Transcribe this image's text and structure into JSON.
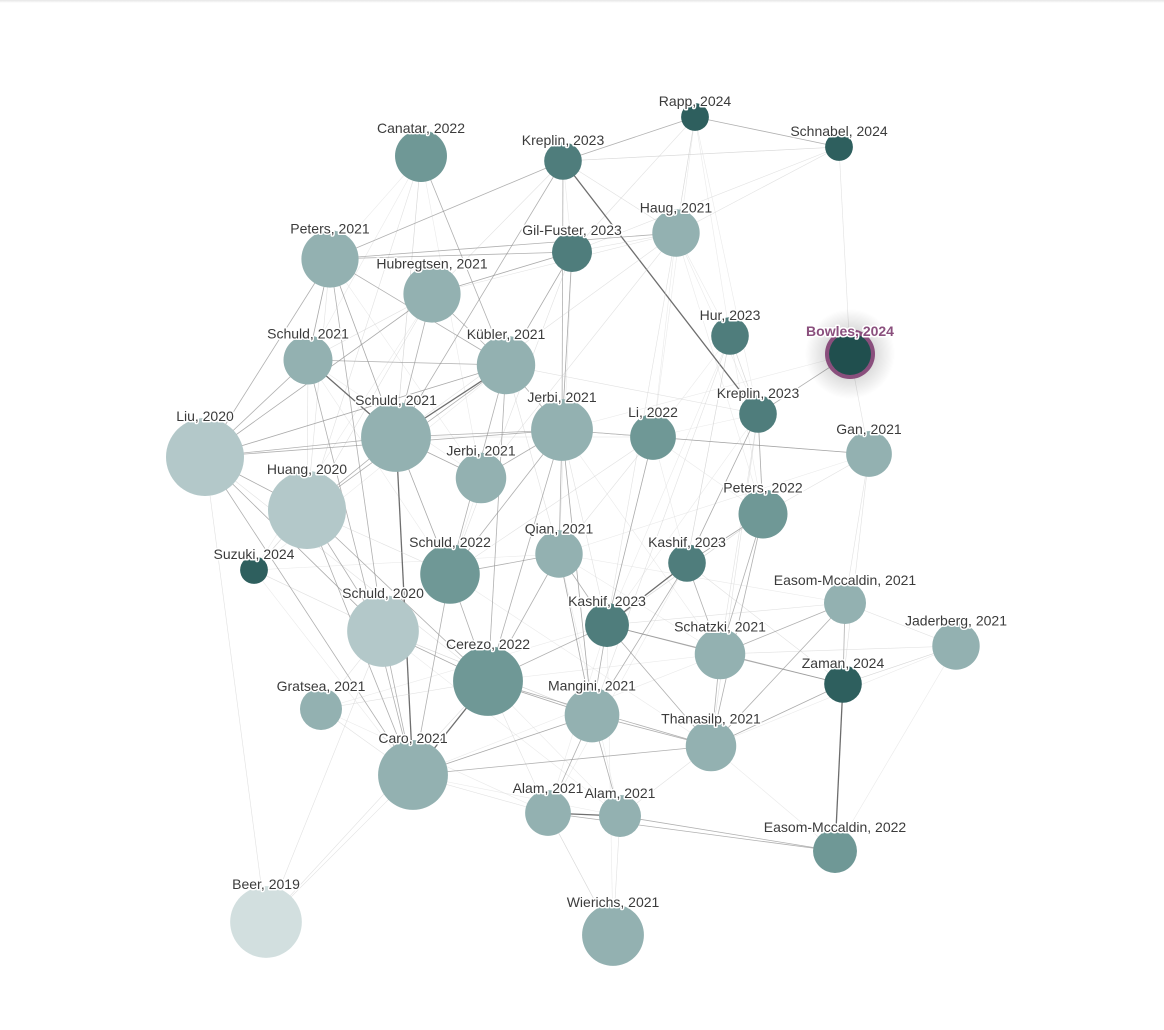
{
  "graph": {
    "selected": "Bowles, 2024",
    "colors": {
      "selected_ring": "#8a4f7d",
      "label": "#3b3b3b",
      "edge": "#777777"
    },
    "nodes": [
      {
        "id": "rapp2024",
        "label": "Rapp, 2024",
        "year": 2024,
        "citations": 1
      },
      {
        "id": "schnabel2024",
        "label": "Schnabel, 2024",
        "year": 2024,
        "citations": 1
      },
      {
        "id": "canatar2022",
        "label": "Canatar, 2022",
        "year": 2022,
        "citations": 12
      },
      {
        "id": "kreplin2023a",
        "label": "Kreplin, 2023",
        "year": 2023,
        "citations": 4
      },
      {
        "id": "haug2021",
        "label": "Haug, 2021",
        "year": 2021,
        "citations": 9
      },
      {
        "id": "gilfuster2023",
        "label": "Gil-Fuster, 2023",
        "year": 2023,
        "citations": 5
      },
      {
        "id": "peters2021",
        "label": "Peters, 2021",
        "year": 2021,
        "citations": 16
      },
      {
        "id": "hubregtsen2021",
        "label": "Hubregtsen, 2021",
        "year": 2021,
        "citations": 16
      },
      {
        "id": "hur2023",
        "label": "Hur, 2023",
        "year": 2023,
        "citations": 4
      },
      {
        "id": "bowles2024",
        "label": "Bowles, 2024",
        "year": 2024,
        "citations": 6
      },
      {
        "id": "schuld2021a",
        "label": "Schuld, 2021",
        "year": 2021,
        "citations": 10
      },
      {
        "id": "kubler2021",
        "label": "Kübler, 2021",
        "year": 2021,
        "citations": 17
      },
      {
        "id": "kreplin2023b",
        "label": "Kreplin, 2023",
        "year": 2023,
        "citations": 4
      },
      {
        "id": "liu2020",
        "label": "Liu, 2020",
        "year": 2020,
        "citations": 38
      },
      {
        "id": "schuld2021b",
        "label": "Schuld, 2021",
        "year": 2021,
        "citations": 28
      },
      {
        "id": "jerbi2021a",
        "label": "Jerbi, 2021",
        "year": 2021,
        "citations": 20
      },
      {
        "id": "li2022",
        "label": "Li, 2022",
        "year": 2022,
        "citations": 8
      },
      {
        "id": "gan2021",
        "label": "Gan, 2021",
        "year": 2021,
        "citations": 8
      },
      {
        "id": "jerbi2021b",
        "label": "Jerbi, 2021",
        "year": 2021,
        "citations": 11
      },
      {
        "id": "huang2020",
        "label": "Huang, 2020",
        "year": 2020,
        "citations": 40
      },
      {
        "id": "peters2022",
        "label": "Peters, 2022",
        "year": 2022,
        "citations": 10
      },
      {
        "id": "suzuki2024",
        "label": "Suzuki, 2024",
        "year": 2024,
        "citations": 1
      },
      {
        "id": "schuld2022",
        "label": "Schuld, 2022",
        "year": 2022,
        "citations": 18
      },
      {
        "id": "qian2021",
        "label": "Qian, 2021",
        "year": 2021,
        "citations": 9
      },
      {
        "id": "kashif2023a",
        "label": "Kashif, 2023",
        "year": 2023,
        "citations": 4
      },
      {
        "id": "easom2021",
        "label": "Easom-Mccaldin, 2021",
        "year": 2021,
        "citations": 6
      },
      {
        "id": "jaderberg2021",
        "label": "Jaderberg, 2021",
        "year": 2021,
        "citations": 9
      },
      {
        "id": "schuld2020",
        "label": "Schuld, 2020",
        "year": 2020,
        "citations": 30
      },
      {
        "id": "kashif2023b",
        "label": "Kashif, 2023",
        "year": 2023,
        "citations": 7
      },
      {
        "id": "schatzki2021",
        "label": "Schatzki, 2021",
        "year": 2021,
        "citations": 11
      },
      {
        "id": "zaman2024",
        "label": "Zaman, 2024",
        "year": 2024,
        "citations": 4
      },
      {
        "id": "cerezo2022",
        "label": "Cerezo, 2022",
        "year": 2022,
        "citations": 28
      },
      {
        "id": "gratsea2021",
        "label": "Gratsea, 2021",
        "year": 2021,
        "citations": 6
      },
      {
        "id": "mangini2021",
        "label": "Mangini, 2021",
        "year": 2021,
        "citations": 14
      },
      {
        "id": "thanasilp2021",
        "label": "Thanasilp, 2021",
        "year": 2021,
        "citations": 11
      },
      {
        "id": "caro2021",
        "label": "Caro, 2021",
        "year": 2021,
        "citations": 28
      },
      {
        "id": "alam2021a",
        "label": "Alam, 2021",
        "year": 2021,
        "citations": 8
      },
      {
        "id": "alam2021b",
        "label": "Alam, 2021",
        "year": 2021,
        "citations": 6
      },
      {
        "id": "easom2022",
        "label": "Easom-Mccaldin, 2022",
        "year": 2022,
        "citations": 7
      },
      {
        "id": "beer2019",
        "label": "Beer, 2019",
        "year": 2019,
        "citations": 30
      },
      {
        "id": "wierichs2021",
        "label": "Wierichs, 2021",
        "year": 2021,
        "citations": 20
      }
    ],
    "edges": [
      [
        "rapp2024",
        "schnabel2024",
        1
      ],
      [
        "rapp2024",
        "kreplin2023a",
        1
      ],
      [
        "rapp2024",
        "haug2021",
        0
      ],
      [
        "rapp2024",
        "gilfuster2023",
        0
      ],
      [
        "schnabel2024",
        "kreplin2023a",
        0
      ],
      [
        "schnabel2024",
        "haug2021",
        0
      ],
      [
        "schnabel2024",
        "gilfuster2023",
        0
      ],
      [
        "schnabel2024",
        "bowles2024",
        0
      ],
      [
        "canatar2022",
        "kubler2021",
        1
      ],
      [
        "canatar2022",
        "schuld2021b",
        0
      ],
      [
        "canatar2022",
        "huang2020",
        0
      ],
      [
        "kreplin2023a",
        "kreplin2023b",
        2
      ],
      [
        "kreplin2023a",
        "schuld2021b",
        1
      ],
      [
        "kreplin2023a",
        "jerbi2021a",
        1
      ],
      [
        "kreplin2023a",
        "peters2021",
        1
      ],
      [
        "kreplin2023a",
        "hubregtsen2021",
        0
      ],
      [
        "kreplin2023a",
        "haug2021",
        0
      ],
      [
        "gilfuster2023",
        "peters2021",
        1
      ],
      [
        "gilfuster2023",
        "hubregtsen2021",
        1
      ],
      [
        "gilfuster2023",
        "jerbi2021a",
        1
      ],
      [
        "gilfuster2023",
        "kubler2021",
        1
      ],
      [
        "gilfuster2023",
        "schuld2022",
        0
      ],
      [
        "gilfuster2023",
        "haug2021",
        0
      ],
      [
        "haug2021",
        "peters2021",
        1
      ],
      [
        "haug2021",
        "hubregtsen2021",
        0
      ],
      [
        "haug2021",
        "schuld2021b",
        0
      ],
      [
        "haug2021",
        "kashif2023b",
        0
      ],
      [
        "haug2021",
        "jerbi2021b",
        0
      ],
      [
        "peters2021",
        "schuld2021a",
        1
      ],
      [
        "peters2021",
        "kubler2021",
        1
      ],
      [
        "peters2021",
        "schuld2021b",
        1
      ],
      [
        "peters2021",
        "liu2020",
        1
      ],
      [
        "peters2021",
        "huang2020",
        0
      ],
      [
        "peters2021",
        "schuld2020",
        1
      ],
      [
        "hubregtsen2021",
        "kubler2021",
        1
      ],
      [
        "hubregtsen2021",
        "schuld2021b",
        1
      ],
      [
        "hubregtsen2021",
        "liu2020",
        1
      ],
      [
        "hubregtsen2021",
        "huang2020",
        0
      ],
      [
        "hubregtsen2021",
        "schuld2021a",
        0
      ],
      [
        "schuld2021a",
        "liu2020",
        1
      ],
      [
        "schuld2021a",
        "schuld2021b",
        2
      ],
      [
        "schuld2021a",
        "kubler2021",
        1
      ],
      [
        "schuld2021a",
        "huang2020",
        0
      ],
      [
        "schuld2021a",
        "caro2021",
        1
      ],
      [
        "kubler2021",
        "schuld2021b",
        2
      ],
      [
        "kubler2021",
        "liu2020",
        1
      ],
      [
        "kubler2021",
        "jerbi2021a",
        1
      ],
      [
        "kubler2021",
        "huang2020",
        1
      ],
      [
        "kubler2021",
        "schuld2022",
        1
      ],
      [
        "kubler2021",
        "qian2021",
        0
      ],
      [
        "kubler2021",
        "cerezo2022",
        1
      ],
      [
        "kubler2021",
        "kreplin2023b",
        0
      ],
      [
        "hur2023",
        "kreplin2023b",
        0
      ],
      [
        "hur2023",
        "kashif2023a",
        0
      ],
      [
        "hur2023",
        "mangini2021",
        0
      ],
      [
        "bowles2024",
        "kreplin2023b",
        1
      ],
      [
        "bowles2024",
        "gan2021",
        0
      ],
      [
        "liu2020",
        "schuld2021b",
        1
      ],
      [
        "liu2020",
        "jerbi2021a",
        1
      ],
      [
        "liu2020",
        "huang2020",
        1
      ],
      [
        "liu2020",
        "schuld2020",
        1
      ],
      [
        "liu2020",
        "caro2021",
        1
      ],
      [
        "liu2020",
        "cerezo2022",
        0
      ],
      [
        "schuld2021b",
        "jerbi2021a",
        1
      ],
      [
        "schuld2021b",
        "huang2020",
        1
      ],
      [
        "schuld2021b",
        "caro2021",
        2
      ],
      [
        "schuld2021b",
        "schuld2022",
        1
      ],
      [
        "schuld2021b",
        "jerbi2021b",
        1
      ],
      [
        "schuld2021b",
        "li2022",
        0
      ],
      [
        "jerbi2021a",
        "li2022",
        1
      ],
      [
        "jerbi2021a",
        "gan2021",
        0
      ],
      [
        "jerbi2021a",
        "jerbi2021b",
        1
      ],
      [
        "jerbi2021a",
        "schuld2022",
        1
      ],
      [
        "jerbi2021a",
        "qian2021",
        1
      ],
      [
        "jerbi2021a",
        "cerezo2022",
        1
      ],
      [
        "jerbi2021a",
        "mangini2021",
        1
      ],
      [
        "jerbi2021a",
        "kashif2023b",
        0
      ],
      [
        "li2022",
        "gan2021",
        1
      ],
      [
        "li2022",
        "kashif2023b",
        1
      ],
      [
        "li2022",
        "qian2021",
        0
      ],
      [
        "li2022",
        "schuld2022",
        0
      ],
      [
        "kreplin2023b",
        "peters2022",
        1
      ],
      [
        "kreplin2023b",
        "kashif2023a",
        1
      ],
      [
        "kreplin2023b",
        "schatzki2021",
        0
      ],
      [
        "kreplin2023b",
        "thanasilp2021",
        0
      ],
      [
        "gan2021",
        "peters2022",
        0
      ],
      [
        "gan2021",
        "easom2021",
        0
      ],
      [
        "gan2021",
        "zaman2024",
        0
      ],
      [
        "huang2020",
        "schuld2020",
        1
      ],
      [
        "huang2020",
        "caro2021",
        1
      ],
      [
        "huang2020",
        "cerezo2022",
        1
      ],
      [
        "huang2020",
        "suzuki2024",
        0
      ],
      [
        "huang2020",
        "schuld2022",
        0
      ],
      [
        "peters2022",
        "kashif2023a",
        1
      ],
      [
        "peters2022",
        "schatzki2021",
        1
      ],
      [
        "peters2022",
        "thanasilp2021",
        1
      ],
      [
        "peters2022",
        "kashif2023b",
        0
      ],
      [
        "schuld2022",
        "cerezo2022",
        1
      ],
      [
        "schuld2022",
        "qian2021",
        1
      ],
      [
        "schuld2022",
        "caro2021",
        1
      ],
      [
        "qian2021",
        "kashif2023b",
        1
      ],
      [
        "qian2021",
        "mangini2021",
        1
      ],
      [
        "qian2021",
        "cerezo2022",
        1
      ],
      [
        "kashif2023a",
        "kashif2023b",
        2
      ],
      [
        "kashif2023a",
        "schatzki2021",
        1
      ],
      [
        "kashif2023a",
        "zaman2024",
        0
      ],
      [
        "kashif2023a",
        "mangini2021",
        1
      ],
      [
        "kashif2023b",
        "schatzki2021",
        1
      ],
      [
        "kashif2023b",
        "zaman2024",
        1
      ],
      [
        "kashif2023b",
        "mangini2021",
        1
      ],
      [
        "kashif2023b",
        "thanasilp2021",
        1
      ],
      [
        "kashif2023b",
        "cerezo2022",
        1
      ],
      [
        "kashif2023b",
        "easom2021",
        0
      ],
      [
        "easom2021",
        "jaderberg2021",
        0
      ],
      [
        "easom2021",
        "zaman2024",
        1
      ],
      [
        "easom2021",
        "schatzki2021",
        1
      ],
      [
        "easom2021",
        "thanasilp2021",
        1
      ],
      [
        "jaderberg2021",
        "zaman2024",
        0
      ],
      [
        "jaderberg2021",
        "schatzki2021",
        0
      ],
      [
        "zaman2024",
        "easom2022",
        2
      ],
      [
        "zaman2024",
        "schatzki2021",
        1
      ],
      [
        "zaman2024",
        "thanasilp2021",
        1
      ],
      [
        "schuld2020",
        "caro2021",
        1
      ],
      [
        "schuld2020",
        "cerezo2022",
        1
      ],
      [
        "schuld2020",
        "gratsea2021",
        0
      ],
      [
        "schuld2020",
        "beer2019",
        0
      ],
      [
        "schuld2020",
        "mangini2021",
        0
      ],
      [
        "cerezo2022",
        "caro2021",
        2
      ],
      [
        "cerezo2022",
        "mangini2021",
        1
      ],
      [
        "cerezo2022",
        "thanasilp2021",
        1
      ],
      [
        "cerezo2022",
        "alam2021a",
        0
      ],
      [
        "cerezo2022",
        "gratsea2021",
        0
      ],
      [
        "mangini2021",
        "thanasilp2021",
        1
      ],
      [
        "mangini2021",
        "alam2021a",
        1
      ],
      [
        "mangini2021",
        "alam2021b",
        1
      ],
      [
        "mangini2021",
        "caro2021",
        1
      ],
      [
        "thanasilp2021",
        "caro2021",
        1
      ],
      [
        "thanasilp2021",
        "schatzki2021",
        1
      ],
      [
        "thanasilp2021",
        "alam2021b",
        0
      ],
      [
        "caro2021",
        "gratsea2021",
        0
      ],
      [
        "caro2021",
        "beer2019",
        0
      ],
      [
        "caro2021",
        "alam2021a",
        0
      ],
      [
        "alam2021a",
        "alam2021b",
        2
      ],
      [
        "alam2021a",
        "wierichs2021",
        0
      ],
      [
        "alam2021b",
        "easom2022",
        1
      ],
      [
        "alam2021b",
        "wierichs2021",
        0
      ],
      [
        "easom2022",
        "alam2021a",
        1
      ],
      [
        "beer2019",
        "liu2020",
        0
      ],
      [
        "beer2019",
        "cerezo2022",
        0
      ]
    ]
  }
}
